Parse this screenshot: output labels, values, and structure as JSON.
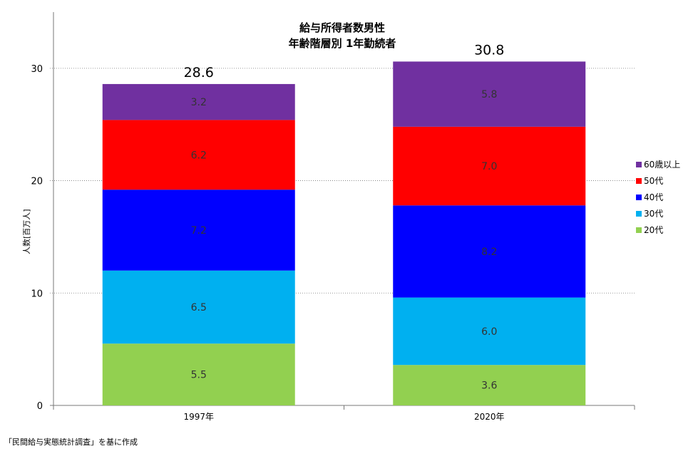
{
  "chart_data": {
    "type": "bar",
    "stacked": true,
    "title_lines": [
      "給与所得者数男性",
      "年齢階層別 1年勤続者"
    ],
    "ylabel": "人数[百万人]",
    "ylim": [
      0,
      35
    ],
    "yticks": [
      0,
      10,
      20,
      30
    ],
    "categories": [
      "1997年",
      "2020年"
    ],
    "totals": [
      "28.6",
      "30.8"
    ],
    "series": [
      {
        "name": "20代",
        "color": "#92d050",
        "values": [
          5.5,
          3.6
        ],
        "labels": [
          "5.5",
          "3.6"
        ]
      },
      {
        "name": "30代",
        "color": "#00b0f0",
        "values": [
          6.5,
          6.0
        ],
        "labels": [
          "6.5",
          "6.0"
        ]
      },
      {
        "name": "40代",
        "color": "#0000ff",
        "values": [
          7.2,
          8.2
        ],
        "labels": [
          "7.2",
          "8.2"
        ]
      },
      {
        "name": "50代",
        "color": "#ff0000",
        "values": [
          6.2,
          7.0
        ],
        "labels": [
          "6.2",
          "7.0"
        ]
      },
      {
        "name": "60歳以上",
        "color": "#7030a0",
        "values": [
          3.2,
          5.8
        ],
        "labels": [
          "3.2",
          "5.8"
        ]
      }
    ],
    "grid": true,
    "legend_position": "right"
  },
  "source_note": "「民間給与実態統計調査」を基に作成"
}
